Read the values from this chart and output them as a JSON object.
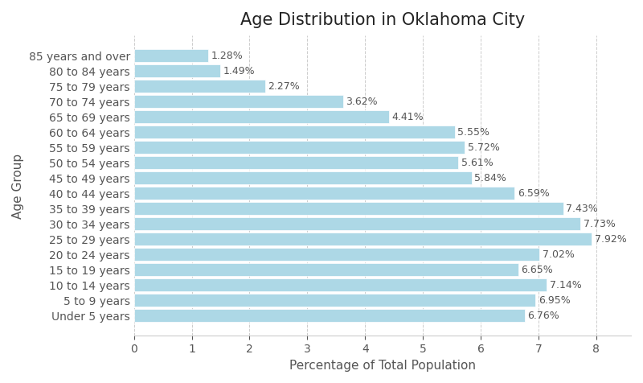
{
  "title": "Age Distribution in Oklahoma City",
  "xlabel": "Percentage of Total Population",
  "ylabel": "Age Group",
  "categories": [
    "85 years and over",
    "80 to 84 years",
    "75 to 79 years",
    "70 to 74 years",
    "65 to 69 years",
    "60 to 64 years",
    "55 to 59 years",
    "50 to 54 years",
    "45 to 49 years",
    "40 to 44 years",
    "35 to 39 years",
    "30 to 34 years",
    "25 to 29 years",
    "20 to 24 years",
    "15 to 19 years",
    "10 to 14 years",
    "5 to 9 years",
    "Under 5 years"
  ],
  "values": [
    1.28,
    1.49,
    2.27,
    3.62,
    4.41,
    5.55,
    5.72,
    5.61,
    5.84,
    6.59,
    7.43,
    7.73,
    7.92,
    7.02,
    6.65,
    7.14,
    6.95,
    6.76
  ],
  "bar_color": "#add8e6",
  "label_color": "#555555",
  "grid_color": "#cccccc",
  "background_color": "#ffffff",
  "title_fontsize": 15,
  "label_fontsize": 11,
  "tick_fontsize": 10,
  "annotation_fontsize": 9,
  "xlim": [
    0,
    8.6
  ]
}
